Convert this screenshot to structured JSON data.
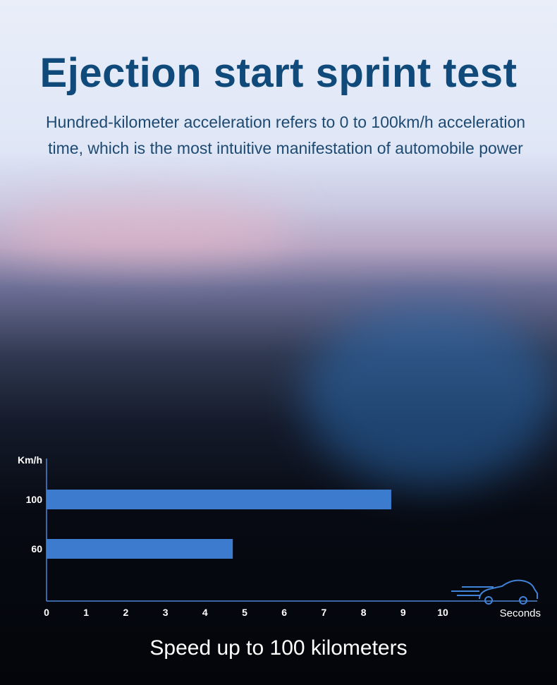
{
  "title": "Ejection start sprint test",
  "subtitle_lines": [
    "Hundred-kilometer acceleration refers to 0 to 100km/h acceleration",
    "time, which is the most intuitive manifestation of automobile power"
  ],
  "caption": "Speed up to 100 kilometers",
  "chart_data": {
    "type": "bar",
    "orientation": "horizontal",
    "categories": [
      "100",
      "60"
    ],
    "values": [
      8.7,
      4.7
    ],
    "xlabel": "Seconds",
    "ylabel": "Km/h",
    "xlim": [
      0,
      12.4
    ],
    "xticks": [
      "0",
      "1",
      "2",
      "3",
      "4",
      "5",
      "6",
      "7",
      "8",
      "9",
      "10"
    ],
    "grid": false,
    "bar_color": "#3f82d8",
    "axis_color": "#4d86d6"
  }
}
